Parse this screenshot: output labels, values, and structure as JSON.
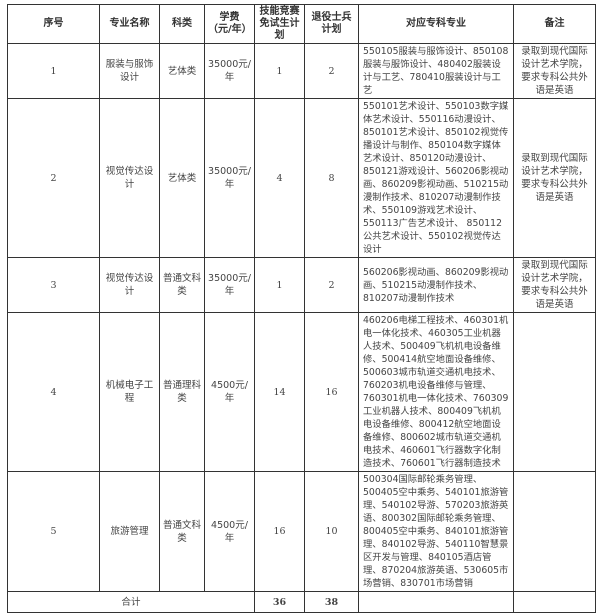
{
  "headers": [
    "序号",
    "专业名称",
    "科类",
    "学费（元/年）",
    "技能竞赛免试生计划",
    "退役士兵计划",
    "对应专科专业",
    "备注"
  ],
  "rows": [
    {
      "no": "1",
      "major": "服装与服饰设计",
      "category": "艺体类",
      "fee": "35000元/年",
      "skill": "1",
      "veteran": "2",
      "specialties": "550105服装与服饰设计、850108服装与服饰设计、480402服装设计与工艺、780410服装设计与工艺",
      "note": "录取到现代国际设计艺术学院，要求专科公共外语是英语"
    },
    {
      "no": "2",
      "major": "视觉传达设计",
      "category": "艺体类",
      "fee": "35000元/年",
      "skill": "4",
      "veteran": "8",
      "specialties": "550101艺术设计、550103数字媒体艺术设计、550116动漫设计、850101艺术设计、850102视觉传播设计与制作、850104数字媒体艺术设计、850120动漫设计、850121游戏设计、560206影视动画、860209影视动画、510215动漫制作技术、810207动漫制作技术、550109游戏艺术设计、550113广告艺术设计、 850112公共艺术设计、550102视觉传达设计",
      "note": "录取到现代国际设计艺术学院，要求专科公共外语是英语"
    },
    {
      "no": "3",
      "major": "视觉传达设计",
      "category": "普通文科类",
      "fee": "35000元/年",
      "skill": "1",
      "veteran": "2",
      "specialties": "560206影视动画、860209影视动画、510215动漫制作技术、810207动漫制作技术",
      "note": "录取到现代国际设计艺术学院，要求专科公共外语是英语"
    },
    {
      "no": "4",
      "major": "机械电子工程",
      "category": "普通理科类",
      "fee": "4500元/年",
      "skill": "14",
      "veteran": "16",
      "specialties": "460206电梯工程技术、460301机电一体化技术、460305工业机器人技术、500409飞机机电设备维修、500414航空地面设备维修、500603城市轨道交通机电技术、760203机电设备维修与管理、760301机电一体化技术、760309工业机器人技术、800409飞机机电设备维修、800412航空地面设备维修、800602城市轨道交通机电技术、460601飞行器数字化制造技术、760601飞行器制造技术",
      "note": ""
    },
    {
      "no": "5",
      "major": "旅游管理",
      "category": "普通文科类",
      "fee": "4500元/年",
      "skill": "16",
      "veteran": "10",
      "specialties": "500304国际邮轮乘务管理、500405空中乘务、540101旅游管理、540102导游、570203旅游英语、800302国际邮轮乘务管理、800405空中乘务、840101旅游管理、840102导游、540110智慧景区开发与管理、840105酒店管理、870204旅游英语、530605市场营销、830701市场营销",
      "note": ""
    }
  ],
  "total": {
    "label": "合计",
    "skill": "36",
    "veteran": "38"
  }
}
